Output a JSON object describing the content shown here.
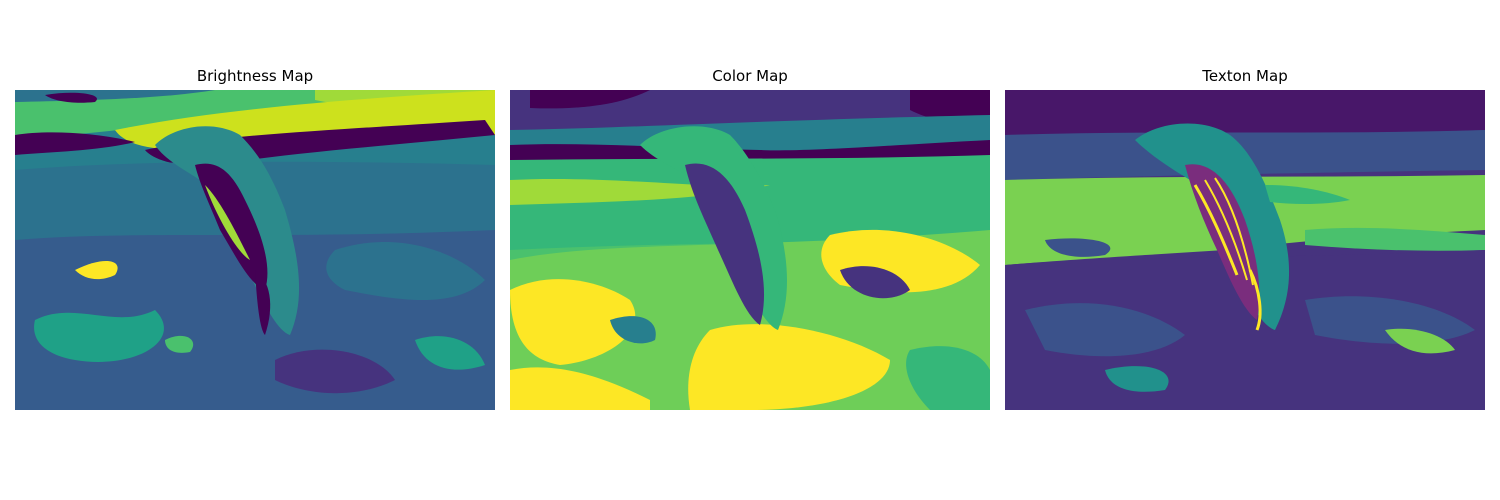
{
  "figure": {
    "panels": [
      {
        "title": "Brightness Map",
        "subject": "penguin-label-map"
      },
      {
        "title": "Color Map",
        "subject": "penguin-label-map"
      },
      {
        "title": "Texton Map",
        "subject": "penguin-label-map"
      }
    ]
  },
  "colors": {
    "viridis": [
      "#440154",
      "#46337e",
      "#365c8d",
      "#277f8e",
      "#1fa187",
      "#4ac16d",
      "#a0da39",
      "#fde725"
    ]
  }
}
